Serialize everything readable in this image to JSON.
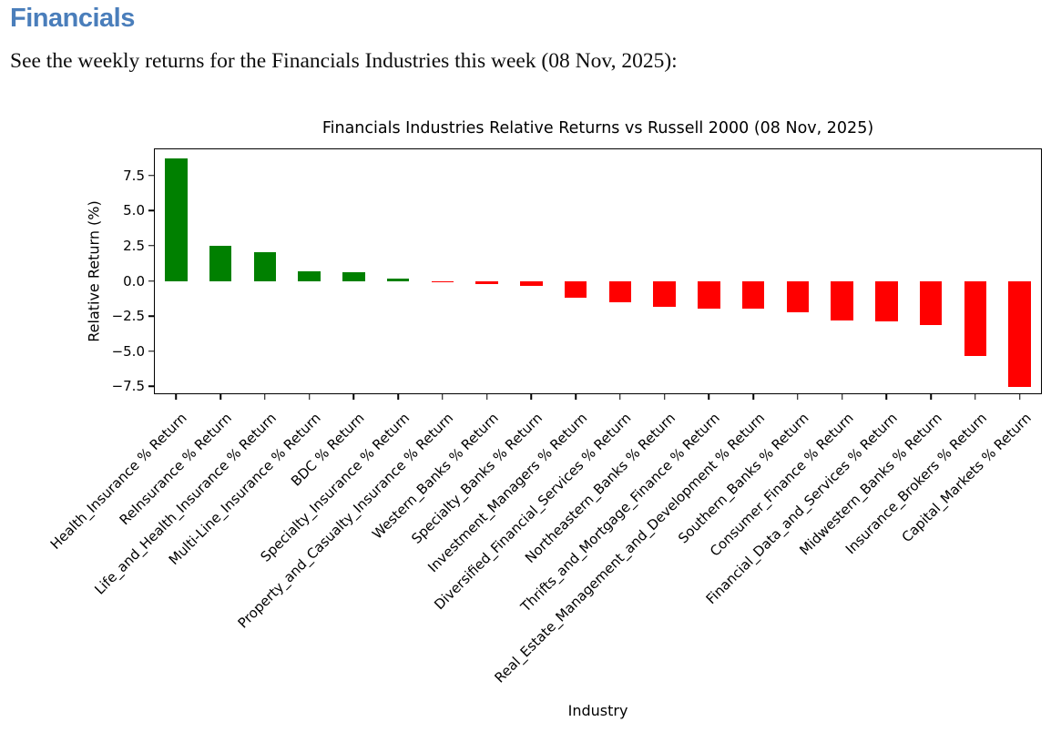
{
  "page": {
    "heading": "Financials",
    "heading_color": "#4a7ebb",
    "subtitle": "See the weekly returns for the Financials Industries this week (08 Nov, 2025):"
  },
  "chart_data": {
    "type": "bar",
    "title": "Financials Industries Relative Returns vs Russell 2000 (08 Nov, 2025)",
    "xlabel": "Industry",
    "ylabel": "Relative Return (%)",
    "ylim": [
      -8.05,
      9.42
    ],
    "yticks": [
      7.5,
      5.0,
      2.5,
      0.0,
      -2.5,
      -5.0,
      -7.5
    ],
    "ytick_labels": [
      "7.5",
      "5.0",
      "2.5",
      "0.0",
      "−2.5",
      "−5.0",
      "−7.5"
    ],
    "grid": false,
    "legend": false,
    "bar_width_frac": 0.5,
    "positive_color": "#008000",
    "negative_color": "#ff0000",
    "categories": [
      "Health_Insurance % Return",
      "ReInsurance % Return",
      "Life_and_Health_Insurance % Return",
      "Multi-Line_Insurance % Return",
      "BDC % Return",
      "Specialty_Insurance % Return",
      "Property_and_Casualty_Insurance % Return",
      "Western_Banks % Return",
      "Specialty_Banks % Return",
      "Investment_Managers % Return",
      "Diversified_Financial_Services % Return",
      "Northeastern_Banks % Return",
      "Thrifts_and_Mortgage_Finance % Return",
      "Real_Estate_Management_and_Development % Return",
      "Southern_Banks % Return",
      "Consumer_Finance % Return",
      "Financial_Data_and_Services % Return",
      "Midwestern_Banks % Return",
      "Insurance_Brokers % Return",
      "Capital_Markets % Return"
    ],
    "values": [
      8.7,
      2.5,
      2.05,
      0.7,
      0.65,
      0.15,
      -0.1,
      -0.2,
      -0.35,
      -1.2,
      -1.5,
      -1.85,
      -1.95,
      -2.0,
      -2.25,
      -2.8,
      -2.85,
      -3.15,
      -5.35,
      -7.55
    ]
  }
}
